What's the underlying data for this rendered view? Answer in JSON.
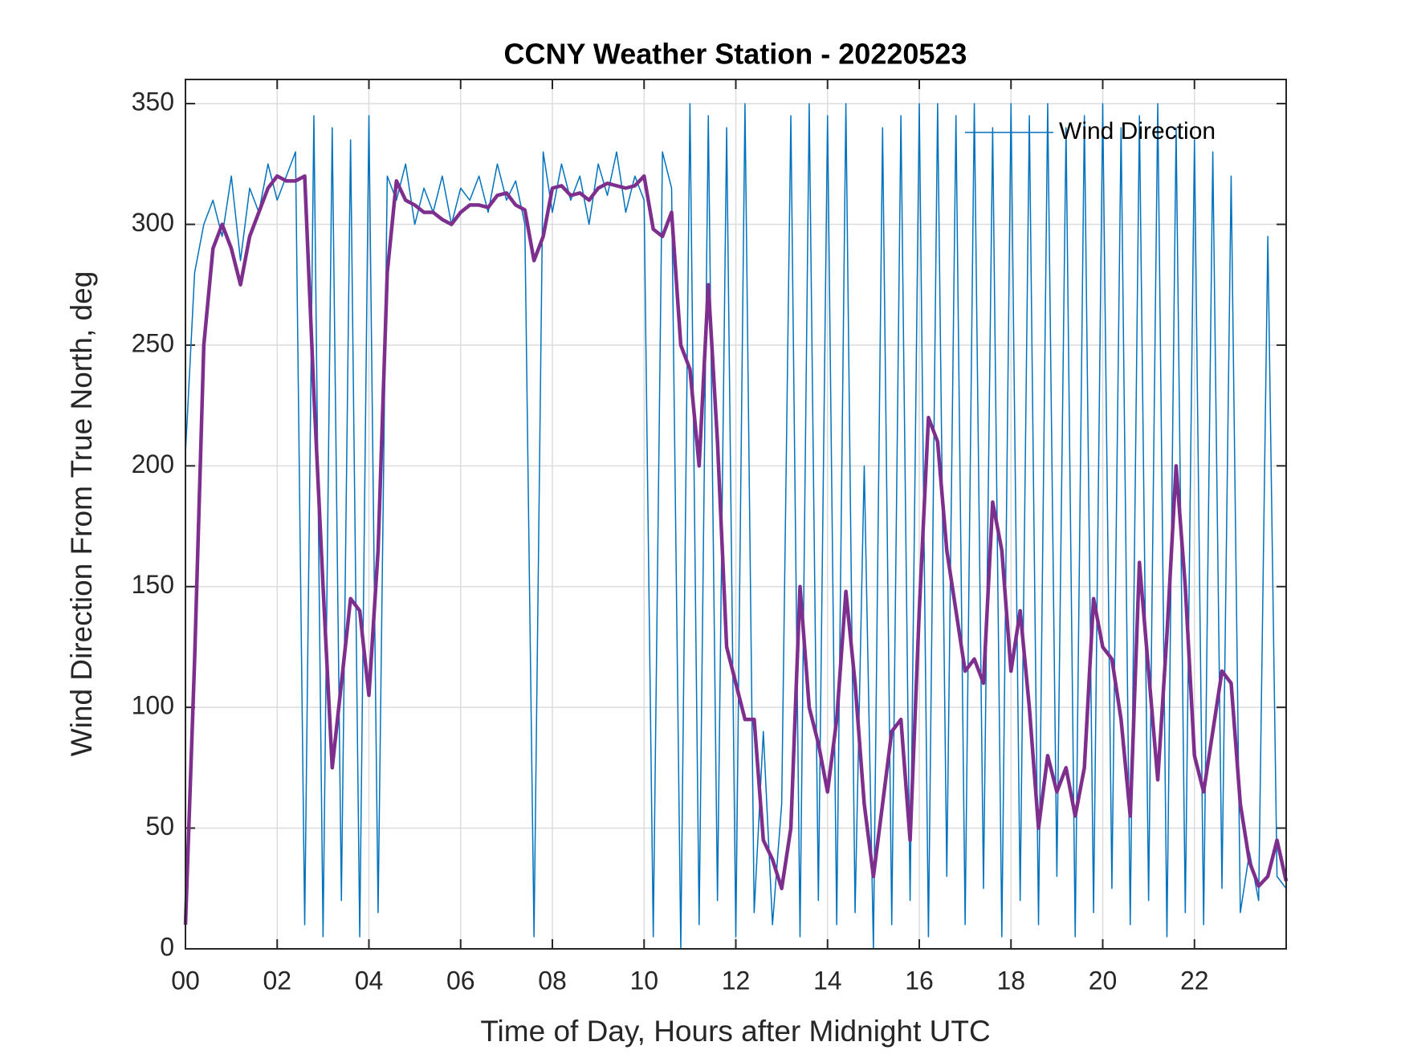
{
  "chart_data": {
    "type": "line",
    "title": "CCNY Weather Station - 20220523",
    "x_label": "Time of Day, Hours after Midnight UTC",
    "y_label": "Wind Direction From True North, deg",
    "x": [
      0,
      0.2,
      0.4,
      0.6,
      0.8,
      1,
      1.2,
      1.4,
      1.6,
      1.8,
      2,
      2.2,
      2.4,
      2.6,
      2.8,
      3,
      3.2,
      3.4,
      3.6,
      3.8,
      4,
      4.2,
      4.4,
      4.6,
      4.8,
      5,
      5.2,
      5.4,
      5.6,
      5.8,
      6,
      6.2,
      6.4,
      6.6,
      6.8,
      7,
      7.2,
      7.4,
      7.6,
      7.8,
      8,
      8.2,
      8.4,
      8.6,
      8.8,
      9,
      9.2,
      9.4,
      9.6,
      9.8,
      10,
      10.2,
      10.4,
      10.6,
      10.8,
      11,
      11.2,
      11.4,
      11.6,
      11.8,
      12,
      12.2,
      12.4,
      12.6,
      12.8,
      13,
      13.2,
      13.4,
      13.6,
      13.8,
      14,
      14.2,
      14.4,
      14.6,
      14.8,
      15,
      15.2,
      15.4,
      15.6,
      15.8,
      16,
      16.2,
      16.4,
      16.6,
      16.8,
      17,
      17.2,
      17.4,
      17.6,
      17.8,
      18,
      18.2,
      18.4,
      18.6,
      18.8,
      19,
      19.2,
      19.4,
      19.6,
      19.8,
      20,
      20.2,
      20.4,
      20.6,
      20.8,
      21,
      21.2,
      21.4,
      21.6,
      21.8,
      22,
      22.2,
      22.4,
      22.6,
      22.8,
      23,
      23.2,
      23.4,
      23.6,
      23.8,
      24
    ],
    "series": [
      {
        "name": "Wind Direction",
        "color": "#0072BD",
        "width": 1.5,
        "values": [
          205,
          280,
          300,
          310,
          295,
          320,
          285,
          315,
          305,
          325,
          310,
          320,
          330,
          10,
          345,
          5,
          340,
          20,
          335,
          5,
          345,
          15,
          320,
          310,
          325,
          300,
          315,
          305,
          320,
          300,
          315,
          310,
          320,
          305,
          325,
          310,
          318,
          300,
          5,
          330,
          305,
          325,
          310,
          320,
          300,
          325,
          312,
          330,
          305,
          320,
          310,
          5,
          330,
          315,
          0,
          350,
          10,
          345,
          20,
          340,
          5,
          350,
          15,
          90,
          10,
          60,
          345,
          5,
          350,
          20,
          345,
          10,
          350,
          15,
          200,
          0,
          340,
          10,
          345,
          20,
          350,
          5,
          350,
          30,
          345,
          10,
          350,
          25,
          340,
          5,
          350,
          20,
          345,
          10,
          350,
          30,
          340,
          5,
          345,
          15,
          350,
          25,
          340,
          10,
          345,
          20,
          350,
          5,
          340,
          15,
          335,
          10,
          330,
          25,
          320,
          15,
          40,
          20,
          295,
          30,
          25
        ]
      },
      {
        "color": "#7E2F8E",
        "width": 4.5,
        "values": [
          10,
          120,
          250,
          290,
          300,
          290,
          275,
          295,
          305,
          315,
          320,
          318,
          318,
          320,
          230,
          150,
          75,
          110,
          145,
          140,
          105,
          165,
          280,
          318,
          310,
          308,
          305,
          305,
          302,
          300,
          305,
          308,
          308,
          307,
          312,
          313,
          308,
          306,
          285,
          295,
          315,
          316,
          312,
          313,
          310,
          315,
          317,
          316,
          315,
          316,
          320,
          298,
          295,
          305,
          250,
          240,
          200,
          275,
          210,
          125,
          110,
          95,
          95,
          45,
          37,
          25,
          50,
          150,
          100,
          85,
          65,
          95,
          148,
          110,
          60,
          30,
          60,
          90,
          95,
          45,
          140,
          220,
          210,
          165,
          140,
          115,
          120,
          110,
          185,
          165,
          115,
          140,
          100,
          50,
          80,
          65,
          75,
          55,
          75,
          145,
          125,
          120,
          95,
          55,
          160,
          115,
          70,
          130,
          200,
          150,
          80,
          65,
          90,
          115,
          110,
          60,
          36,
          26,
          30,
          45,
          28
        ]
      }
    ],
    "xlim": [
      0,
      24
    ],
    "xticks": [
      {
        "value": 0,
        "label": "00"
      },
      {
        "value": 2,
        "label": "02"
      },
      {
        "value": 4,
        "label": "04"
      },
      {
        "value": 6,
        "label": "06"
      },
      {
        "value": 8,
        "label": "08"
      },
      {
        "value": 10,
        "label": "10"
      },
      {
        "value": 12,
        "label": "12"
      },
      {
        "value": 14,
        "label": "14"
      },
      {
        "value": 16,
        "label": "16"
      },
      {
        "value": 18,
        "label": "18"
      },
      {
        "value": 20,
        "label": "20"
      },
      {
        "value": 22,
        "label": "22"
      }
    ],
    "ylim": [
      0,
      360
    ],
    "yticks": [
      0,
      50,
      100,
      150,
      200,
      250,
      300,
      350
    ],
    "grid": true,
    "legend_loc": "upper right"
  }
}
